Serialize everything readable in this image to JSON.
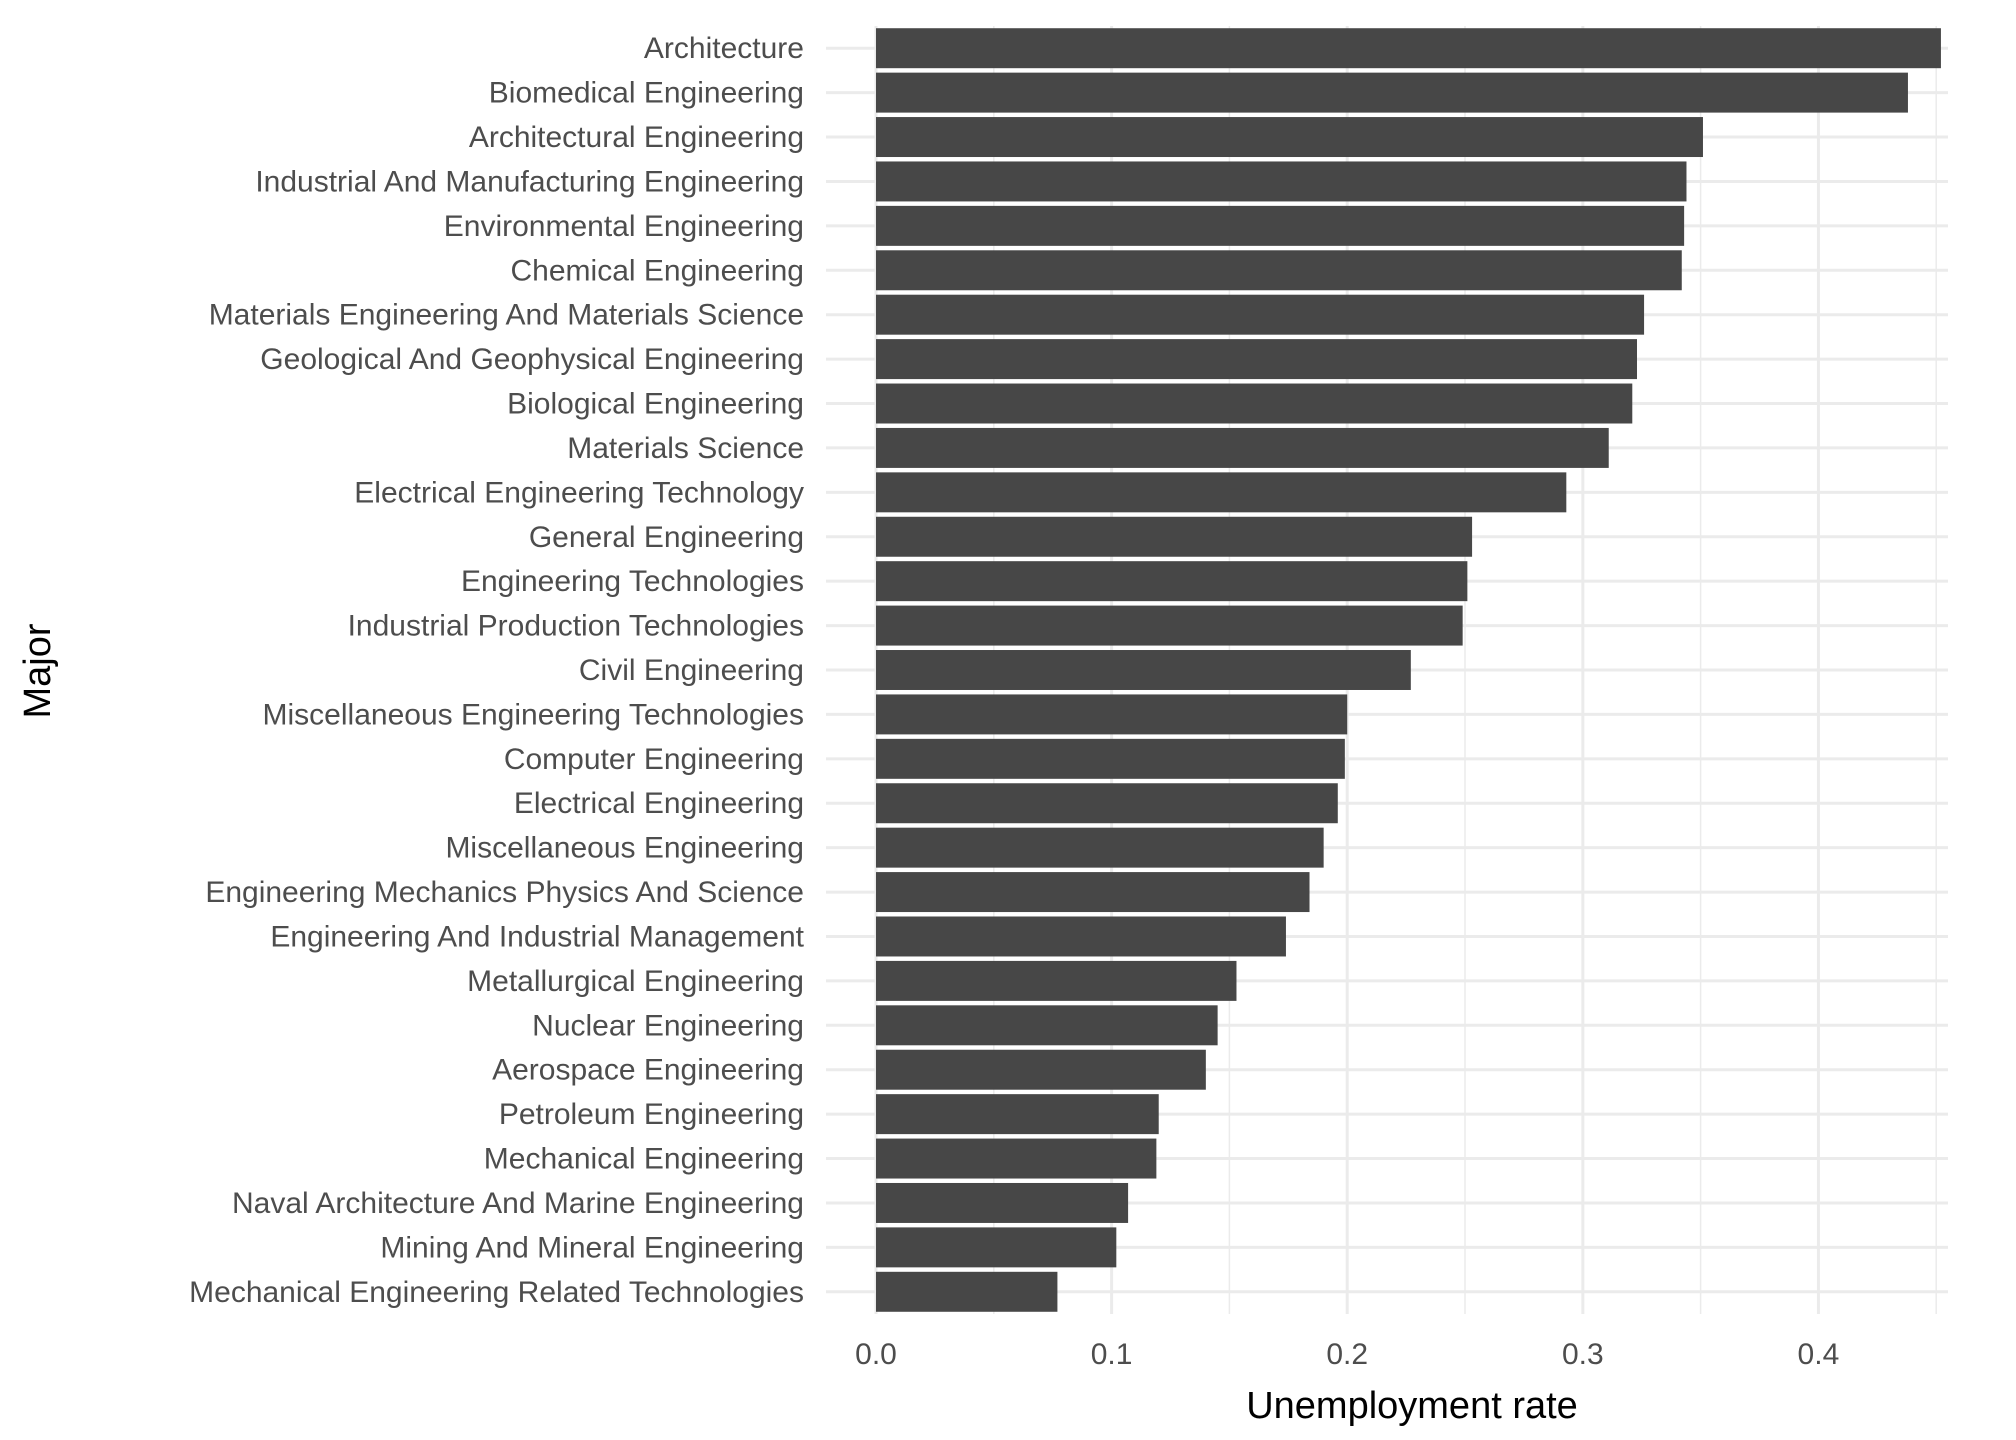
{
  "chart_data": {
    "type": "bar",
    "orientation": "horizontal",
    "xlabel": "Unemployment rate",
    "ylabel": "Major",
    "xlim": [
      0,
      0.455
    ],
    "xticks": [
      "0.0",
      "0.1",
      "0.2",
      "0.3",
      "0.4"
    ],
    "grid": true,
    "bar_color": "#474747",
    "categories": [
      "Architecture",
      "Biomedical Engineering",
      "Architectural Engineering",
      "Industrial And Manufacturing Engineering",
      "Environmental Engineering",
      "Chemical Engineering",
      "Materials Engineering And Materials Science",
      "Geological And Geophysical Engineering",
      "Biological Engineering",
      "Materials Science",
      "Electrical Engineering Technology",
      "General Engineering",
      "Engineering Technologies",
      "Industrial Production Technologies",
      "Civil Engineering",
      "Miscellaneous Engineering Technologies",
      "Computer Engineering",
      "Electrical Engineering",
      "Miscellaneous Engineering",
      "Engineering Mechanics Physics And Science",
      "Engineering And Industrial Management",
      "Metallurgical Engineering",
      "Nuclear Engineering",
      "Aerospace Engineering",
      "Petroleum Engineering",
      "Mechanical Engineering",
      "Naval Architecture And Marine Engineering",
      "Mining And Mineral Engineering",
      "Mechanical Engineering Related Technologies"
    ],
    "values": [
      0.452,
      0.438,
      0.351,
      0.344,
      0.343,
      0.342,
      0.326,
      0.323,
      0.321,
      0.311,
      0.293,
      0.253,
      0.251,
      0.249,
      0.227,
      0.2,
      0.199,
      0.196,
      0.19,
      0.184,
      0.174,
      0.153,
      0.145,
      0.14,
      0.12,
      0.119,
      0.107,
      0.102,
      0.077
    ]
  }
}
